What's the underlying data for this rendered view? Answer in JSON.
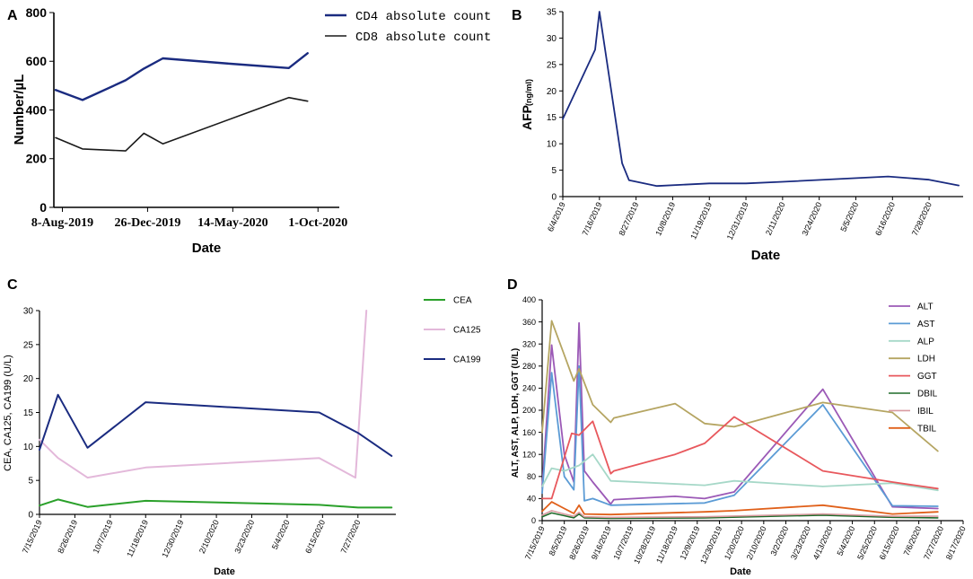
{
  "figure": {
    "panel_labels": [
      "A",
      "B",
      "C",
      "D"
    ]
  },
  "chart_data": [
    {
      "panel": "A",
      "type": "line",
      "xlabel": "Date",
      "ylabel": "Number/µL",
      "ylim": [
        0,
        800
      ],
      "yticks": [
        "0",
        "200",
        "400",
        "600",
        "800"
      ],
      "xlim": [
        "2019-07-25",
        "2020-11-05"
      ],
      "xticks": [
        {
          "date": "2019-08-08",
          "label": "8-Aug-2019"
        },
        {
          "date": "2019-12-26",
          "label": "26-Dec-2019"
        },
        {
          "date": "2020-05-14",
          "label": "14-May-2020"
        },
        {
          "date": "2020-10-01",
          "label": "1-Oct-2020"
        }
      ],
      "legend": "top-right",
      "series": [
        {
          "name": "CD4 absolute count",
          "color": "#1a2b80",
          "width": 2.4,
          "points": [
            [
              "2019-07-28",
              482
            ],
            [
              "2019-09-10",
              441
            ],
            [
              "2019-11-20",
              522
            ],
            [
              "2019-12-20",
              570
            ],
            [
              "2020-01-20",
              612
            ],
            [
              "2020-05-10",
              590
            ],
            [
              "2020-08-14",
              572
            ],
            [
              "2020-09-14",
              633
            ]
          ]
        },
        {
          "name": "CD8 absolute count",
          "color": "#1a1a1a",
          "width": 1.6,
          "points": [
            [
              "2019-07-28",
              286
            ],
            [
              "2019-09-10",
              240
            ],
            [
              "2019-11-20",
              232
            ],
            [
              "2019-12-20",
              304
            ],
            [
              "2020-01-20",
              261
            ],
            [
              "2020-08-14",
              451
            ],
            [
              "2020-09-14",
              436
            ]
          ]
        }
      ]
    },
    {
      "panel": "B",
      "type": "line",
      "xlabel": "Date",
      "ylabel_main": "AFP",
      "ylabel_unit": "(ng/ml)",
      "ylim": [
        0,
        35
      ],
      "yticks": [
        "0",
        "5",
        "10",
        "15",
        "20",
        "25",
        "30",
        "35"
      ],
      "xlim": [
        "2019-06-04",
        "2020-09-05"
      ],
      "xticks": [
        {
          "date": "2019-06-04",
          "label": "6/4/2019"
        },
        {
          "date": "2019-07-16",
          "label": "7/16/2019"
        },
        {
          "date": "2019-08-27",
          "label": "8/27/2019"
        },
        {
          "date": "2019-10-08",
          "label": "10/8/2019"
        },
        {
          "date": "2019-11-19",
          "label": "11/19/2019"
        },
        {
          "date": "2019-12-31",
          "label": "12/31/2019"
        },
        {
          "date": "2020-02-11",
          "label": "2/11/2020"
        },
        {
          "date": "2020-03-24",
          "label": "3/24/2020"
        },
        {
          "date": "2020-05-05",
          "label": "5/5/2020"
        },
        {
          "date": "2020-06-16",
          "label": "6/16/2020"
        },
        {
          "date": "2020-07-28",
          "label": "7/28/2020"
        }
      ],
      "series": [
        {
          "name": "AFP",
          "color": "#1a2b80",
          "width": 1.8,
          "points": [
            [
              "2019-06-04",
              14.7
            ],
            [
              "2019-07-11",
              27.8
            ],
            [
              "2019-07-16",
              35
            ],
            [
              "2019-08-11",
              6.3
            ],
            [
              "2019-08-19",
              3.1
            ],
            [
              "2019-09-20",
              2.0
            ],
            [
              "2019-11-19",
              2.5
            ],
            [
              "2019-12-31",
              2.5
            ],
            [
              "2020-02-11",
              2.8
            ],
            [
              "2020-06-11",
              3.8
            ],
            [
              "2020-07-28",
              3.2
            ],
            [
              "2020-08-31",
              2.1
            ]
          ]
        }
      ]
    },
    {
      "panel": "C",
      "type": "line",
      "xlabel": "Date",
      "ylabel": "CEA, CA125, CA199 (U/L)",
      "ylim": [
        0,
        30
      ],
      "yticks": [
        "0",
        "5",
        "10",
        "15",
        "20",
        "25",
        "30"
      ],
      "xlim": [
        "2019-07-15",
        "2020-09-10"
      ],
      "xticks": [
        {
          "date": "2019-07-15",
          "label": "7/15/2019"
        },
        {
          "date": "2019-08-26",
          "label": "8/26/2019"
        },
        {
          "date": "2019-10-07",
          "label": "10/7/2019"
        },
        {
          "date": "2019-11-18",
          "label": "11/18/2019"
        },
        {
          "date": "2019-12-30",
          "label": "12/30/2019"
        },
        {
          "date": "2020-02-10",
          "label": "2/10/2020"
        },
        {
          "date": "2020-03-23",
          "label": "3/23/2020"
        },
        {
          "date": "2020-05-04",
          "label": "5/4/2020"
        },
        {
          "date": "2020-06-15",
          "label": "6/15/2020"
        },
        {
          "date": "2020-07-27",
          "label": "7/27/2020"
        }
      ],
      "legend": "right",
      "series": [
        {
          "name": "CEA",
          "color": "#2aa02a",
          "width": 2,
          "points": [
            [
              "2019-07-15",
              1.3
            ],
            [
              "2019-08-06",
              2.2
            ],
            [
              "2019-09-10",
              1.1
            ],
            [
              "2019-11-18",
              2.0
            ],
            [
              "2020-06-11",
              1.4
            ],
            [
              "2020-07-27",
              1.0
            ],
            [
              "2020-09-05",
              1.0
            ]
          ]
        },
        {
          "name": "CA125",
          "color": "#e3b8da",
          "width": 2,
          "points": [
            [
              "2019-07-15",
              11.0
            ],
            [
              "2019-08-06",
              8.3
            ],
            [
              "2019-09-10",
              5.4
            ],
            [
              "2019-11-18",
              6.9
            ],
            [
              "2020-06-11",
              8.3
            ],
            [
              "2020-07-24",
              5.4
            ],
            [
              "2020-08-06",
              30
            ]
          ]
        },
        {
          "name": "CA199",
          "color": "#1a2b80",
          "width": 2,
          "points": [
            [
              "2019-07-15",
              9.5
            ],
            [
              "2019-08-06",
              17.6
            ],
            [
              "2019-09-10",
              9.8
            ],
            [
              "2019-11-18",
              16.5
            ],
            [
              "2020-06-11",
              15.0
            ],
            [
              "2020-07-27",
              12.0
            ],
            [
              "2020-09-05",
              8.6
            ]
          ]
        }
      ]
    },
    {
      "panel": "D",
      "type": "line",
      "xlabel": "Date",
      "ylabel": "ALT, AST, ALP, LDH, GGT (U/L)",
      "ylim": [
        0,
        400
      ],
      "yticks": [
        "0",
        "40",
        "80",
        "120",
        "160",
        "200",
        "240",
        "280",
        "320",
        "360",
        "400"
      ],
      "xlim": [
        "2019-07-15",
        "2020-08-17"
      ],
      "xticks": [
        {
          "date": "2019-07-15",
          "label": "7/15/2019"
        },
        {
          "date": "2019-08-05",
          "label": "8/5/2019"
        },
        {
          "date": "2019-08-26",
          "label": "8/26/2019"
        },
        {
          "date": "2019-09-16",
          "label": "9/16/2019"
        },
        {
          "date": "2019-10-07",
          "label": "10/7/2019"
        },
        {
          "date": "2019-10-28",
          "label": "10/28/2019"
        },
        {
          "date": "2019-11-18",
          "label": "11/18/2019"
        },
        {
          "date": "2019-12-09",
          "label": "12/9/2019"
        },
        {
          "date": "2019-12-30",
          "label": "12/30/2019"
        },
        {
          "date": "2020-01-20",
          "label": "1/20/2020"
        },
        {
          "date": "2020-02-10",
          "label": "2/10/2020"
        },
        {
          "date": "2020-03-02",
          "label": "3/2/2020"
        },
        {
          "date": "2020-03-23",
          "label": "3/23/2020"
        },
        {
          "date": "2020-04-13",
          "label": "4/13/2020"
        },
        {
          "date": "2020-05-04",
          "label": "5/4/2020"
        },
        {
          "date": "2020-05-25",
          "label": "5/25/2020"
        },
        {
          "date": "2020-06-15",
          "label": "6/15/2020"
        },
        {
          "date": "2020-07-06",
          "label": "7/6/2020"
        },
        {
          "date": "2020-07-27",
          "label": "7/27/2020"
        },
        {
          "date": "2020-08-17",
          "label": "8/17/2020"
        }
      ],
      "legend": "right",
      "series": [
        {
          "name": "ALT",
          "color": "#9b59b6",
          "width": 1.8,
          "points": [
            [
              "2019-07-15",
              60
            ],
            [
              "2019-07-24",
              318
            ],
            [
              "2019-08-05",
              120
            ],
            [
              "2019-08-14",
              70
            ],
            [
              "2019-08-19",
              358
            ],
            [
              "2019-08-24",
              90
            ],
            [
              "2019-09-01",
              70
            ],
            [
              "2019-09-18",
              30
            ],
            [
              "2019-09-21",
              38
            ],
            [
              "2019-11-18",
              44
            ],
            [
              "2019-12-16",
              40
            ],
            [
              "2020-01-13",
              52
            ],
            [
              "2020-04-06",
              238
            ],
            [
              "2020-06-11",
              25
            ],
            [
              "2020-07-24",
              22
            ]
          ]
        },
        {
          "name": "AST",
          "color": "#5b9bd5",
          "width": 1.8,
          "points": [
            [
              "2019-07-15",
              50
            ],
            [
              "2019-07-24",
              268
            ],
            [
              "2019-08-05",
              80
            ],
            [
              "2019-08-14",
              56
            ],
            [
              "2019-08-19",
              280
            ],
            [
              "2019-08-24",
              36
            ],
            [
              "2019-09-01",
              40
            ],
            [
              "2019-09-18",
              28
            ],
            [
              "2019-12-16",
              32
            ],
            [
              "2020-01-13",
              46
            ],
            [
              "2020-04-06",
              210
            ],
            [
              "2020-06-11",
              27
            ],
            [
              "2020-07-24",
              26
            ]
          ]
        },
        {
          "name": "ALP",
          "color": "#a6d8c8",
          "width": 1.8,
          "points": [
            [
              "2019-07-15",
              62
            ],
            [
              "2019-07-24",
              95
            ],
            [
              "2019-08-05",
              90
            ],
            [
              "2019-08-19",
              100
            ],
            [
              "2019-09-01",
              120
            ],
            [
              "2019-09-18",
              72
            ],
            [
              "2019-12-16",
              64
            ],
            [
              "2020-01-13",
              72
            ],
            [
              "2020-04-06",
              62
            ],
            [
              "2020-06-11",
              68
            ],
            [
              "2020-07-24",
              55
            ]
          ]
        },
        {
          "name": "LDH",
          "color": "#b5a562",
          "width": 1.8,
          "points": [
            [
              "2019-07-15",
              160
            ],
            [
              "2019-07-24",
              362
            ],
            [
              "2019-08-05",
              300
            ],
            [
              "2019-08-14",
              253
            ],
            [
              "2019-08-19",
              275
            ],
            [
              "2019-09-01",
              210
            ],
            [
              "2019-09-18",
              178
            ],
            [
              "2019-09-21",
              186
            ],
            [
              "2019-11-18",
              212
            ],
            [
              "2019-12-16",
              176
            ],
            [
              "2020-01-13",
              170
            ],
            [
              "2020-04-06",
              214
            ],
            [
              "2020-06-11",
              196
            ],
            [
              "2020-07-24",
              126
            ]
          ]
        },
        {
          "name": "GGT",
          "color": "#e8585d",
          "width": 1.8,
          "points": [
            [
              "2019-07-15",
              40
            ],
            [
              "2019-07-24",
              40
            ],
            [
              "2019-08-12",
              158
            ],
            [
              "2019-08-19",
              155
            ],
            [
              "2019-09-01",
              180
            ],
            [
              "2019-09-18",
              85
            ],
            [
              "2019-09-21",
              90
            ],
            [
              "2019-11-18",
              120
            ],
            [
              "2019-12-16",
              140
            ],
            [
              "2020-01-13",
              188
            ],
            [
              "2020-04-06",
              90
            ],
            [
              "2020-06-11",
              70
            ],
            [
              "2020-07-24",
              58
            ]
          ]
        },
        {
          "name": "DBIL",
          "color": "#1e6b2a",
          "width": 1.6,
          "points": [
            [
              "2019-07-15",
              7
            ],
            [
              "2019-07-24",
              14
            ],
            [
              "2019-08-05",
              9
            ],
            [
              "2019-08-14",
              5
            ],
            [
              "2019-08-19",
              12
            ],
            [
              "2019-08-24",
              5
            ],
            [
              "2019-09-18",
              4
            ],
            [
              "2019-12-16",
              5
            ],
            [
              "2020-04-06",
              10
            ],
            [
              "2020-06-11",
              6
            ],
            [
              "2020-07-24",
              5
            ]
          ]
        },
        {
          "name": "IBIL",
          "color": "#d99aa0",
          "width": 1.6,
          "points": [
            [
              "2019-07-15",
              10
            ],
            [
              "2019-07-24",
              18
            ],
            [
              "2019-08-05",
              12
            ],
            [
              "2019-08-14",
              8
            ],
            [
              "2019-08-19",
              15
            ],
            [
              "2019-08-24",
              7
            ],
            [
              "2019-09-18",
              6
            ],
            [
              "2019-12-16",
              7
            ],
            [
              "2020-04-06",
              12
            ],
            [
              "2020-06-11",
              8
            ],
            [
              "2020-07-24",
              8
            ]
          ]
        },
        {
          "name": "TBIL",
          "color": "#e0601a",
          "width": 1.8,
          "points": [
            [
              "2019-07-15",
              17
            ],
            [
              "2019-07-24",
              34
            ],
            [
              "2019-08-05",
              22
            ],
            [
              "2019-08-14",
              13
            ],
            [
              "2019-08-19",
              28
            ],
            [
              "2019-08-24",
              12
            ],
            [
              "2019-09-18",
              11
            ],
            [
              "2019-12-16",
              16
            ],
            [
              "2020-01-13",
              18
            ],
            [
              "2020-04-06",
              28
            ],
            [
              "2020-06-11",
              12
            ],
            [
              "2020-07-24",
              16
            ]
          ]
        }
      ]
    }
  ]
}
